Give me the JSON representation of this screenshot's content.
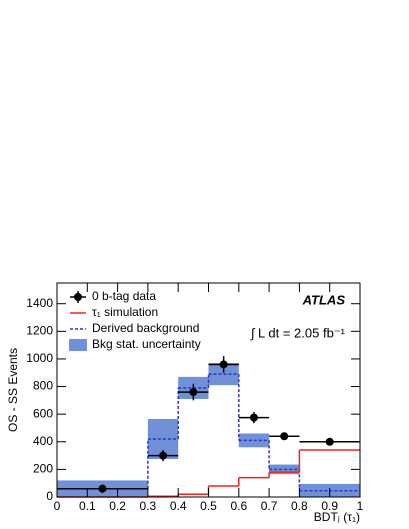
{
  "chart_data": {
    "type": "histogram",
    "experiment": "ATLAS",
    "luminosity": "∫ L dt = 2.05 fb⁻¹",
    "xlabel": "BDTⱼ (τ₁)",
    "ylabel": "OS - SS Events",
    "bins": [
      0,
      0.3,
      0.4,
      0.5,
      0.6,
      0.7,
      0.8,
      1.0
    ],
    "xlim": [
      0,
      1
    ],
    "xticks": [
      0,
      0.1,
      0.2,
      0.3,
      0.4,
      0.5,
      0.6,
      0.7,
      0.8,
      0.9,
      1
    ],
    "ylim": [
      0,
      1550
    ],
    "yticks": [
      0,
      200,
      400,
      600,
      800,
      1000,
      1200,
      1400
    ],
    "data": {
      "name": "0 b-tag data",
      "color": "#000000",
      "values": [
        60,
        300,
        760,
        960,
        575,
        440,
        400
      ],
      "errors": [
        30,
        40,
        60,
        60,
        40,
        25,
        15
      ]
    },
    "signal": {
      "name": "τ₁ simulation",
      "color": "#ee2222",
      "values": [
        0,
        5,
        20,
        80,
        140,
        180,
        340
      ]
    },
    "background": {
      "name": "Derived background",
      "color": "#3333bb",
      "values": [
        60,
        420,
        790,
        890,
        410,
        200,
        45
      ],
      "errors": [
        60,
        145,
        80,
        80,
        50,
        35,
        50
      ]
    },
    "uncertainty": {
      "name": "Bkg stat. uncertainty",
      "color": "#7090d8"
    }
  }
}
